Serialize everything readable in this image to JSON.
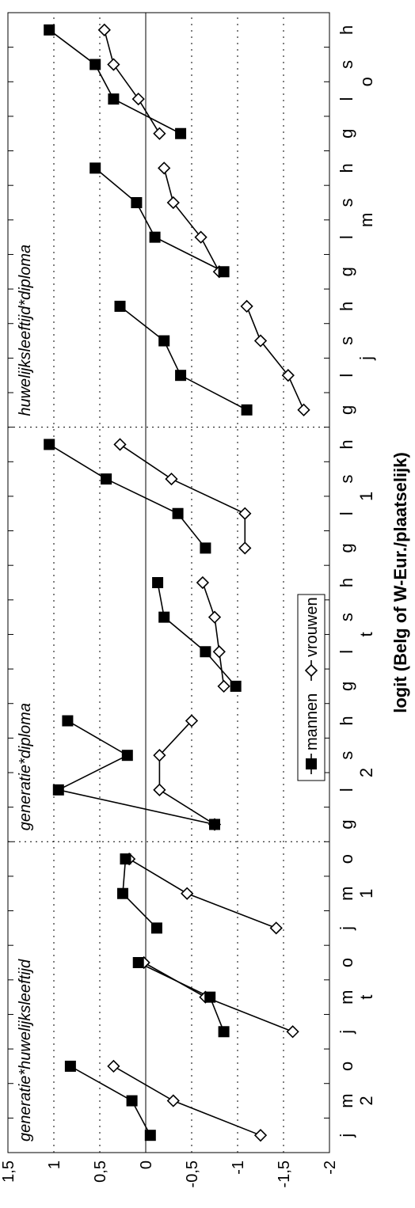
{
  "chart_data": {
    "type": "line",
    "orientation": "rotated-90-ccw",
    "ylabel": "logit (Belg of W-Eur./plaatselijk)",
    "ylim": [
      -2,
      1.5
    ],
    "yticks": [
      1.5,
      1,
      0.5,
      0,
      -0.5,
      -1,
      -1.5,
      -2
    ],
    "ytick_labels": [
      "1,5",
      "1",
      "0,5",
      "0",
      "-0,5",
      "-1",
      "-1,5",
      "-2"
    ],
    "grid": "dotted horizontal at 1, 0.5, -0.5, -1, -1.5; solid zero line",
    "legend": {
      "placement": "lower-center",
      "entries": [
        {
          "name": "mannen",
          "marker": "filled-square"
        },
        {
          "name": "vrouwen",
          "marker": "open-diamond"
        }
      ]
    },
    "panels": [
      {
        "title": "generatie*huwelijksleeftijd",
        "groups": [
          {
            "label": "2",
            "categories": [
              "j",
              "m",
              "o"
            ],
            "mannen": [
              -0.05,
              0.15,
              0.82
            ],
            "vrouwen": [
              -1.25,
              -0.3,
              0.35
            ]
          },
          {
            "label": "t",
            "categories": [
              "j",
              "m",
              "o"
            ],
            "mannen": [
              -0.85,
              -0.7,
              0.08
            ],
            "vrouwen": [
              -1.6,
              -0.65,
              0.02
            ]
          },
          {
            "label": "1",
            "categories": [
              "j",
              "m",
              "o"
            ],
            "mannen": [
              -0.12,
              0.25,
              0.22
            ],
            "vrouwen": [
              -1.42,
              -0.45,
              0.18
            ]
          }
        ]
      },
      {
        "title": "generatie*diploma",
        "groups": [
          {
            "label": "2",
            "categories": [
              "g",
              "l",
              "s",
              "h"
            ],
            "mannen": [
              -0.75,
              0.95,
              0.2,
              0.85
            ],
            "vrouwen": [
              -0.75,
              -0.15,
              -0.15,
              -0.5
            ]
          },
          {
            "label": "t",
            "categories": [
              "g",
              "l",
              "s",
              "h"
            ],
            "mannen": [
              -0.98,
              -0.65,
              -0.2,
              -0.13
            ],
            "vrouwen": [
              -0.85,
              -0.8,
              -0.75,
              -0.62
            ]
          },
          {
            "label": "1",
            "categories": [
              "g",
              "l",
              "s",
              "h"
            ],
            "mannen": [
              -0.65,
              -0.35,
              0.43,
              1.05
            ],
            "vrouwen": [
              -1.08,
              -1.08,
              -0.28,
              0.28
            ]
          }
        ]
      },
      {
        "title": "huwelijksleeftijd*diploma",
        "groups": [
          {
            "label": "j",
            "categories": [
              "g",
              "l",
              "s",
              "h"
            ],
            "mannen": [
              -1.1,
              -0.38,
              -0.2,
              0.28
            ],
            "vrouwen": [
              -1.72,
              -1.55,
              -1.25,
              -1.1
            ]
          },
          {
            "label": "m",
            "categories": [
              "g",
              "l",
              "s",
              "h"
            ],
            "mannen": [
              -0.85,
              -0.1,
              0.1,
              0.55
            ],
            "vrouwen": [
              -0.8,
              -0.6,
              -0.3,
              -0.2
            ]
          },
          {
            "label": "o",
            "categories": [
              "g",
              "l",
              "s",
              "h"
            ],
            "mannen": [
              -0.38,
              0.35,
              0.55,
              1.05
            ],
            "vrouwen": [
              -0.15,
              0.08,
              0.35,
              0.45
            ]
          }
        ]
      }
    ]
  }
}
